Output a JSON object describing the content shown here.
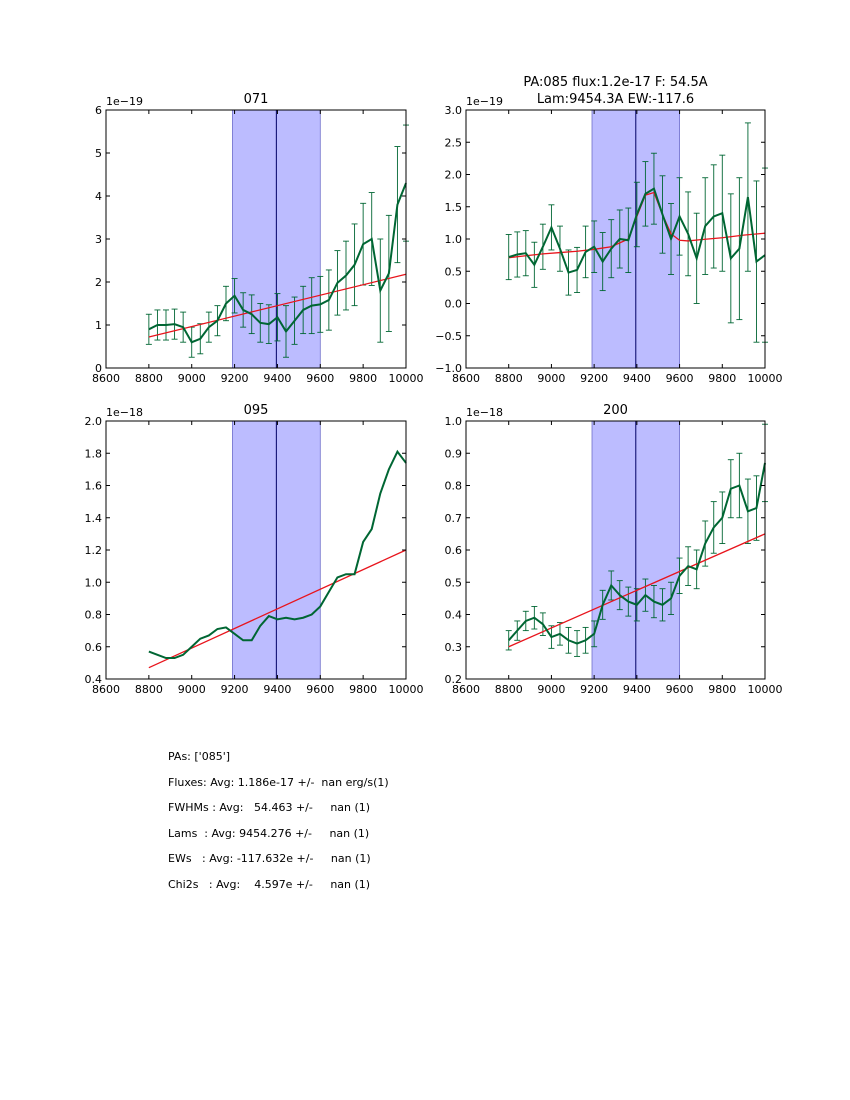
{
  "colors": {
    "data": "#006633",
    "fit": "#e8141c",
    "window": "#bcbcff",
    "window_edge": "#7070cc"
  },
  "chart_data": [
    {
      "type": "line",
      "title": [
        "071"
      ],
      "xlim": [
        8600,
        10000
      ],
      "xticks": [
        8600,
        8800,
        9000,
        9200,
        9400,
        9600,
        9800,
        10000
      ],
      "xtick_labels": [
        "8600",
        "8800",
        "9000",
        "9200",
        "9400",
        "9600",
        "9800",
        "10000"
      ],
      "ylim": [
        0,
        6
      ],
      "yticks": [
        0,
        1,
        2,
        3,
        4,
        5,
        6
      ],
      "ytick_labels": [
        "0",
        "1",
        "2",
        "3",
        "4",
        "5",
        "6"
      ],
      "offset_label": "1e−19",
      "band": [
        9190,
        9600
      ],
      "center_line": 9395,
      "series": [
        {
          "name": "flux",
          "x": [
            8800,
            8840,
            8880,
            8920,
            8960,
            9000,
            9040,
            9080,
            9120,
            9160,
            9200,
            9240,
            9280,
            9320,
            9360,
            9400,
            9440,
            9480,
            9520,
            9560,
            9600,
            9640,
            9680,
            9720,
            9760,
            9800,
            9840,
            9880,
            9920,
            9960,
            10000
          ],
          "y": [
            0.9,
            1.0,
            1.0,
            1.02,
            0.95,
            0.6,
            0.68,
            0.95,
            1.1,
            1.5,
            1.68,
            1.35,
            1.25,
            1.05,
            1.02,
            1.18,
            0.85,
            1.1,
            1.35,
            1.45,
            1.48,
            1.58,
            1.98,
            2.15,
            2.4,
            2.88,
            3.0,
            1.8,
            2.2,
            3.8,
            4.3
          ],
          "err": [
            0.35,
            0.35,
            0.35,
            0.35,
            0.35,
            0.35,
            0.35,
            0.35,
            0.35,
            0.4,
            0.4,
            0.4,
            0.45,
            0.45,
            0.45,
            0.55,
            0.6,
            0.55,
            0.55,
            0.65,
            0.65,
            0.7,
            0.75,
            0.8,
            0.95,
            0.95,
            1.08,
            1.2,
            1.35,
            1.35,
            1.35
          ]
        },
        {
          "name": "fit",
          "x": [
            8800,
            10000
          ],
          "y": [
            0.72,
            2.18
          ]
        }
      ]
    },
    {
      "type": "line",
      "title": [
        "PA:085 flux:1.2e-17 F: 54.5A",
        "Lam:9454.3A EW:-117.6"
      ],
      "xlim": [
        8600,
        10000
      ],
      "xticks": [
        8600,
        8800,
        9000,
        9200,
        9400,
        9600,
        9800,
        10000
      ],
      "xtick_labels": [
        "8600",
        "8800",
        "9000",
        "9200",
        "9400",
        "9600",
        "9800",
        "10000"
      ],
      "ylim": [
        -1,
        3
      ],
      "yticks": [
        -1,
        -0.5,
        0,
        0.5,
        1,
        1.5,
        2,
        2.5,
        3
      ],
      "ytick_labels": [
        "−1.0",
        "−0.5",
        "0.0",
        "0.5",
        "1.0",
        "1.5",
        "2.0",
        "2.5",
        "3.0"
      ],
      "offset_label": "1e−19",
      "band": [
        9190,
        9600
      ],
      "center_line": 9395,
      "series": [
        {
          "name": "flux",
          "x": [
            8800,
            8840,
            8880,
            8920,
            8960,
            9000,
            9040,
            9080,
            9120,
            9160,
            9200,
            9240,
            9280,
            9320,
            9360,
            9400,
            9440,
            9480,
            9520,
            9560,
            9600,
            9640,
            9680,
            9720,
            9760,
            9800,
            9840,
            9880,
            9920,
            9960,
            10000
          ],
          "y": [
            0.72,
            0.76,
            0.78,
            0.6,
            0.88,
            1.18,
            0.85,
            0.48,
            0.52,
            0.8,
            0.88,
            0.65,
            0.85,
            1.0,
            0.98,
            1.38,
            1.7,
            1.78,
            1.38,
            1.0,
            1.35,
            1.08,
            0.7,
            1.2,
            1.35,
            1.4,
            0.7,
            0.85,
            1.65,
            0.65,
            0.75
          ],
          "err": [
            0.35,
            0.35,
            0.35,
            0.35,
            0.35,
            0.35,
            0.35,
            0.35,
            0.35,
            0.4,
            0.4,
            0.45,
            0.45,
            0.45,
            0.5,
            0.5,
            0.5,
            0.55,
            0.6,
            0.55,
            0.6,
            0.65,
            0.7,
            0.75,
            0.8,
            0.9,
            1.0,
            1.1,
            1.15,
            1.25,
            1.35
          ]
        },
        {
          "name": "fit",
          "x": [
            8800,
            8880,
            8960,
            9040,
            9120,
            9200,
            9280,
            9360,
            9400,
            9440,
            9480,
            9520,
            9560,
            9600,
            9640,
            9700,
            9800,
            9900,
            10000
          ],
          "y": [
            0.71,
            0.74,
            0.77,
            0.79,
            0.81,
            0.84,
            0.88,
            1.0,
            1.35,
            1.68,
            1.72,
            1.38,
            1.08,
            0.98,
            0.97,
            0.99,
            1.02,
            1.06,
            1.09
          ]
        }
      ]
    },
    {
      "type": "line",
      "title": [
        "095"
      ],
      "xlim": [
        8600,
        10000
      ],
      "xticks": [
        8600,
        8800,
        9000,
        9200,
        9400,
        9600,
        9800,
        10000
      ],
      "xtick_labels": [
        "8600",
        "8800",
        "9000",
        "9200",
        "9400",
        "9600",
        "9800",
        "10000"
      ],
      "ylim": [
        0.4,
        2.0
      ],
      "yticks": [
        0.4,
        0.6,
        0.8,
        1.0,
        1.2,
        1.4,
        1.6,
        1.8,
        2.0
      ],
      "ytick_labels": [
        "0.4",
        "0.6",
        "0.8",
        "1.0",
        "1.2",
        "1.4",
        "1.6",
        "1.8",
        "2.0"
      ],
      "offset_label": "1e−18",
      "band": [
        9190,
        9600
      ],
      "center_line": 9395,
      "series": [
        {
          "name": "flux",
          "x": [
            8800,
            8840,
            8880,
            8920,
            8960,
            9000,
            9040,
            9080,
            9120,
            9160,
            9200,
            9240,
            9280,
            9320,
            9360,
            9400,
            9440,
            9480,
            9520,
            9560,
            9600,
            9640,
            9680,
            9720,
            9760,
            9800,
            9840,
            9880,
            9920,
            9960,
            10000
          ],
          "y": [
            0.57,
            0.55,
            0.53,
            0.53,
            0.55,
            0.6,
            0.65,
            0.67,
            0.71,
            0.72,
            0.68,
            0.64,
            0.64,
            0.73,
            0.79,
            0.77,
            0.78,
            0.77,
            0.78,
            0.8,
            0.85,
            0.94,
            1.03,
            1.05,
            1.05,
            1.25,
            1.33,
            1.55,
            1.7,
            1.81,
            1.74
          ]
        },
        {
          "name": "fit",
          "x": [
            8800,
            10000
          ],
          "y": [
            0.47,
            1.2
          ]
        }
      ]
    },
    {
      "type": "line",
      "title": [
        "200"
      ],
      "xlim": [
        8600,
        10000
      ],
      "xticks": [
        8600,
        8800,
        9000,
        9200,
        9400,
        9600,
        9800,
        10000
      ],
      "xtick_labels": [
        "8600",
        "8800",
        "9000",
        "9200",
        "9400",
        "9600",
        "9800",
        "10000"
      ],
      "ylim": [
        0.2,
        1.0
      ],
      "yticks": [
        0.2,
        0.3,
        0.4,
        0.5,
        0.6,
        0.7,
        0.8,
        0.9,
        1.0
      ],
      "ytick_labels": [
        "0.2",
        "0.3",
        "0.4",
        "0.5",
        "0.6",
        "0.7",
        "0.8",
        "0.9",
        "1.0"
      ],
      "offset_label": "1e−18",
      "band": [
        9190,
        9600
      ],
      "center_line": 9395,
      "series": [
        {
          "name": "flux",
          "x": [
            8800,
            8840,
            8880,
            8920,
            8960,
            9000,
            9040,
            9080,
            9120,
            9160,
            9200,
            9240,
            9280,
            9320,
            9360,
            9400,
            9440,
            9480,
            9520,
            9560,
            9600,
            9640,
            9680,
            9720,
            9760,
            9800,
            9840,
            9880,
            9920,
            9960,
            10000
          ],
          "y": [
            0.32,
            0.35,
            0.38,
            0.39,
            0.37,
            0.33,
            0.34,
            0.32,
            0.31,
            0.32,
            0.34,
            0.43,
            0.49,
            0.46,
            0.44,
            0.43,
            0.46,
            0.44,
            0.43,
            0.45,
            0.52,
            0.55,
            0.54,
            0.62,
            0.67,
            0.7,
            0.79,
            0.8,
            0.72,
            0.73,
            0.87
          ],
          "err": [
            0.03,
            0.03,
            0.03,
            0.035,
            0.035,
            0.035,
            0.035,
            0.04,
            0.04,
            0.04,
            0.04,
            0.045,
            0.045,
            0.045,
            0.045,
            0.05,
            0.05,
            0.05,
            0.05,
            0.05,
            0.055,
            0.06,
            0.06,
            0.07,
            0.08,
            0.08,
            0.09,
            0.1,
            0.1,
            0.1,
            0.12
          ]
        },
        {
          "name": "fit",
          "x": [
            8800,
            10000
          ],
          "y": [
            0.3,
            0.65
          ]
        }
      ]
    }
  ],
  "stats": {
    "pas": "PAs: ['085']",
    "fluxes": "Fluxes: Avg: 1.186e-17 +/-  nan erg/s(1)",
    "fwhms": "FWHMs : Avg:   54.463 +/-     nan (1)",
    "lams": "Lams  : Avg: 9454.276 +/-     nan (1)",
    "ews": "EWs   : Avg: -117.632e +/-     nan (1)",
    "chi2s": "Chi2s   : Avg:    4.597e +/-     nan (1)"
  }
}
